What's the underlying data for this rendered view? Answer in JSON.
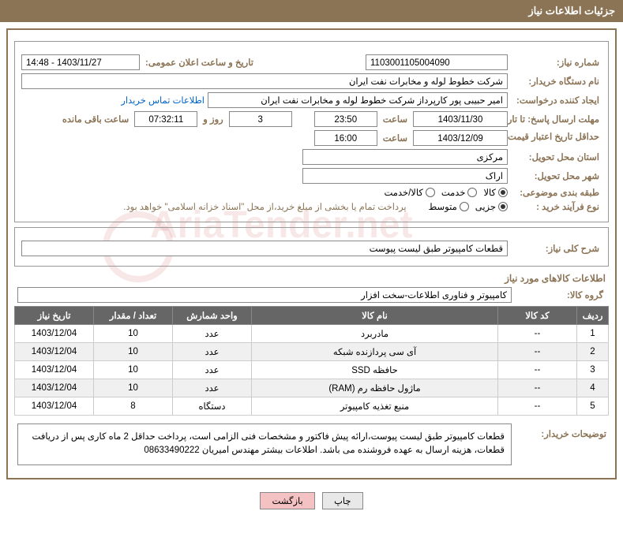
{
  "header": {
    "title": "جزئیات اطلاعات نیاز"
  },
  "form": {
    "need_number_label": "شماره نیاز:",
    "need_number": "1103001105004090",
    "announce_date_label": "تاریخ و ساعت اعلان عمومی:",
    "announce_date": "1403/11/27 - 14:48",
    "buyer_org_label": "نام دستگاه خریدار:",
    "buyer_org": "شرکت خطوط لوله و مخابرات نفت ایران",
    "requester_label": "ایجاد کننده درخواست:",
    "requester": "امیر حبیبی پور  کارپرداز شرکت خطوط لوله و مخابرات نفت ایران",
    "contact_link": "اطلاعات تماس خریدار",
    "deadline_label": "مهلت ارسال پاسخ: تا تاریخ:",
    "deadline_date": "1403/11/30",
    "time_label": "ساعت",
    "deadline_time": "23:50",
    "remaining_days": "3",
    "days_and": "روز و",
    "remaining_time": "07:32:11",
    "remaining_label": "ساعت باقی مانده",
    "validity_label": "حداقل تاریخ اعتبار قیمت: تا تاریخ:",
    "validity_date": "1403/12/09",
    "validity_time": "16:00",
    "province_label": "استان محل تحویل:",
    "province": "مرکزی",
    "city_label": "شهر محل تحویل:",
    "city": "اراک",
    "category_label": "طبقه بندی موضوعی:",
    "cat_goods": "کالا",
    "cat_service": "خدمت",
    "cat_goods_service": "کالا/خدمت",
    "purchase_type_label": "نوع فرآیند خرید :",
    "pt_partial": "جزیی",
    "pt_medium": "متوسط",
    "purchase_note": "پرداخت تمام یا بخشی از مبلغ خرید،از محل \"اسناد خزانه اسلامی\" خواهد بود.",
    "desc_label": "شرح کلی نیاز:",
    "desc": "قطعات کامپیوتر طبق لیست پیوست",
    "items_title": "اطلاعات کالاهای مورد نیاز",
    "group_label": "گروه کالا:",
    "group": "کامپیوتر و فناوری اطلاعات-سخت افزار"
  },
  "table": {
    "headers": {
      "row": "ردیف",
      "code": "کد کالا",
      "name": "نام کالا",
      "unit": "واحد شمارش",
      "qty": "تعداد / مقدار",
      "date": "تاریخ نیاز"
    },
    "rows": [
      {
        "n": "1",
        "code": "--",
        "name": "مادربرد",
        "unit": "عدد",
        "qty": "10",
        "date": "1403/12/04"
      },
      {
        "n": "2",
        "code": "--",
        "name": "آی سی پردازنده شبکه",
        "unit": "عدد",
        "qty": "10",
        "date": "1403/12/04"
      },
      {
        "n": "3",
        "code": "--",
        "name": "حافظه SSD",
        "unit": "عدد",
        "qty": "10",
        "date": "1403/12/04"
      },
      {
        "n": "4",
        "code": "--",
        "name": "ماژول حافظه رم (RAM)",
        "unit": "عدد",
        "qty": "10",
        "date": "1403/12/04"
      },
      {
        "n": "5",
        "code": "--",
        "name": "منبع تغذیه کامپیوتر",
        "unit": "دستگاه",
        "qty": "8",
        "date": "1403/12/04"
      }
    ]
  },
  "buyer_notes": {
    "label": "توضیحات خریدار:",
    "text": "قطعات کامپیوتر طبق لیست پیوست،ارائه پیش فاکتور و مشخصات فنی الزامی است، پرداخت حداقل 2 ماه کاری پس از دریافت قطعات، هزینه ارسال به عهده فروشنده می باشد. اطلاعات بیشتر مهندس امیریان 08633490222"
  },
  "buttons": {
    "print": "چاپ",
    "back": "بازگشت"
  },
  "watermark": "AriaTender.net",
  "colors": {
    "header_bg": "#8b7355",
    "label_color": "#8b7355",
    "th_bg": "#666666",
    "link": "#0066cc"
  }
}
